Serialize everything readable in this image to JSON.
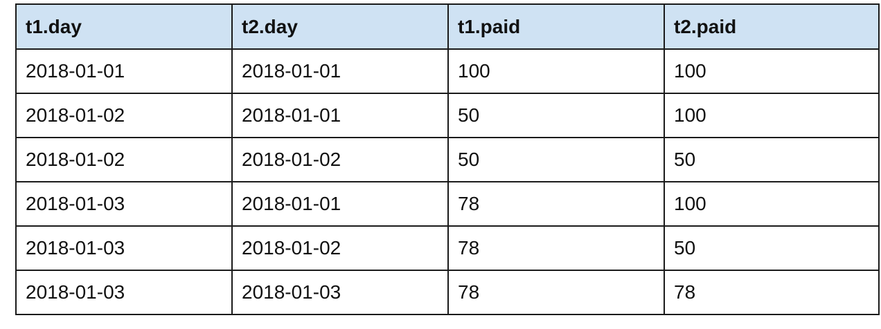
{
  "table": {
    "headers": [
      "t1.day",
      "t2.day",
      "t1.paid",
      "t2.paid"
    ],
    "rows": [
      [
        "2018-01-01",
        "2018-01-01",
        "100",
        "100"
      ],
      [
        "2018-01-02",
        "2018-01-01",
        "50",
        "100"
      ],
      [
        "2018-01-02",
        "2018-01-02",
        "50",
        "50"
      ],
      [
        "2018-01-03",
        "2018-01-01",
        "78",
        "100"
      ],
      [
        "2018-01-03",
        "2018-01-02",
        "78",
        "50"
      ],
      [
        "2018-01-03",
        "2018-01-03",
        "78",
        "78"
      ]
    ]
  },
  "colors": {
    "header_background": "#cfe2f3",
    "border": "#1a1a1a",
    "text": "#111111"
  }
}
